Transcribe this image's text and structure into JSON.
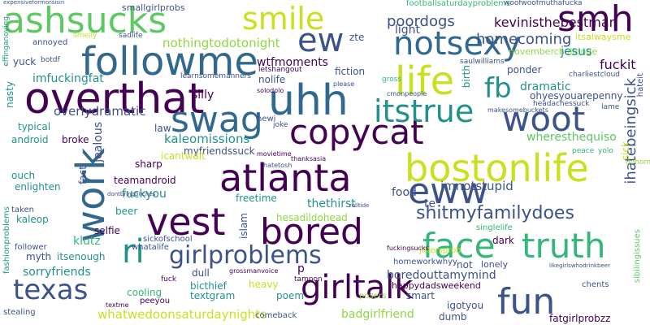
{
  "palette": {
    "dark_purple": "#440154",
    "indigo": "#3b528b",
    "teal_blue": "#31688e",
    "teal": "#21918c",
    "green": "#35b779",
    "light_green": "#5ec962",
    "yellow_green": "#90d743",
    "yellow": "#c8e020"
  },
  "words": [
    {
      "text": "ashsucks",
      "color": "#5ec962",
      "rotate": 0
    },
    {
      "text": "smile",
      "color": "#c8e020",
      "rotate": 0
    },
    {
      "text": "smh",
      "color": "#440154",
      "rotate": 0
    },
    {
      "text": "followme",
      "color": "#31688e",
      "rotate": 0
    },
    {
      "text": "notsexy",
      "color": "#31688e",
      "rotate": 0
    },
    {
      "text": "ew",
      "color": "#3b528b",
      "rotate": 0
    },
    {
      "text": "life",
      "color": "#c8e020",
      "rotate": 0
    },
    {
      "text": "overthat",
      "color": "#440154",
      "rotate": 0
    },
    {
      "text": "uhh",
      "color": "#31688e",
      "rotate": 0
    },
    {
      "text": "swag",
      "color": "#31688e",
      "rotate": 0
    },
    {
      "text": "copycat",
      "color": "#440154",
      "rotate": 0
    },
    {
      "text": "woot",
      "color": "#3b528b",
      "rotate": 0
    },
    {
      "text": "fb",
      "color": "#21918c",
      "rotate": 0
    },
    {
      "text": "itstrue",
      "color": "#21918c",
      "rotate": 0
    },
    {
      "text": "work",
      "color": "#31688e",
      "rotate": -90
    },
    {
      "text": "atlanta",
      "color": "#440154",
      "rotate": 0
    },
    {
      "text": "bostonlife",
      "color": "#c8e020",
      "rotate": 0
    },
    {
      "text": "eww",
      "color": "#3b528b",
      "rotate": 0
    },
    {
      "text": "vest",
      "color": "#440154",
      "rotate": 0
    },
    {
      "text": "bored",
      "color": "#440154",
      "rotate": 0
    },
    {
      "text": "face",
      "color": "#35b779",
      "rotate": 0
    },
    {
      "text": "truth",
      "color": "#35b779",
      "rotate": 0
    },
    {
      "text": "shitmyfamilydoes",
      "color": "#3b528b",
      "rotate": 0
    },
    {
      "text": "ri",
      "color": "#21918c",
      "rotate": 0
    },
    {
      "text": "girlproblems",
      "color": "#3b528b",
      "rotate": 0
    },
    {
      "text": "texas",
      "color": "#3b528b",
      "rotate": 0
    },
    {
      "text": "girltalk",
      "color": "#440154",
      "rotate": 0
    },
    {
      "text": "fun",
      "color": "#3b528b",
      "rotate": 0
    },
    {
      "text": "poordogs",
      "color": "#3b528b",
      "rotate": 0
    },
    {
      "text": "homecoming",
      "color": "#3b528b",
      "rotate": 0
    },
    {
      "text": "kevinisthebestman",
      "color": "#440154",
      "rotate": 0
    },
    {
      "text": "nothingtodotonight",
      "color": "#90d743",
      "rotate": 0
    },
    {
      "text": "smallgirlprobs",
      "color": "#3b528b",
      "rotate": 0
    },
    {
      "text": "footballsaturdayproblems",
      "color": "#35b779",
      "rotate": 0
    },
    {
      "text": "woofwoofmuthafucka",
      "color": "#3b528b",
      "rotate": 0
    },
    {
      "text": "novemberchallenge",
      "color": "#90d743",
      "rotate": 0
    },
    {
      "text": "light",
      "color": "#3b528b",
      "rotate": 0
    },
    {
      "text": "zte",
      "color": "#3b528b",
      "rotate": 0
    },
    {
      "text": "jesus",
      "color": "#21918c",
      "rotate": 0
    },
    {
      "text": "fuckit",
      "color": "#440154",
      "rotate": 0
    },
    {
      "text": "yuck",
      "color": "#3b528b",
      "rotate": 0
    },
    {
      "text": "imfuckingfat",
      "color": "#21918c",
      "rotate": 0
    },
    {
      "text": "wtfmoments",
      "color": "#440154",
      "rotate": 0
    },
    {
      "text": "letshangout",
      "color": "#440154",
      "rotate": 0
    },
    {
      "text": "learnsomemanners",
      "color": "#3b528b",
      "rotate": 0
    },
    {
      "text": "saulwilliams",
      "color": "#3b528b",
      "rotate": 0
    },
    {
      "text": "charliestcloud",
      "color": "#3b528b",
      "rotate": 0
    },
    {
      "text": "ponder",
      "color": "#3b528b",
      "rotate": 0
    },
    {
      "text": "ohyesyouarepenny",
      "color": "#3b528b",
      "rotate": 0
    },
    {
      "text": "dramatic",
      "color": "#21918c",
      "rotate": 0
    },
    {
      "text": "nolife",
      "color": "#3b528b",
      "rotate": 0
    },
    {
      "text": "fiction",
      "color": "#3b528b",
      "rotate": 0
    },
    {
      "text": "silly",
      "color": "#440154",
      "rotate": 0
    },
    {
      "text": "overlydramatic",
      "color": "#3b528b",
      "rotate": 0
    },
    {
      "text": "ihatebeingsick",
      "color": "#3b528b",
      "rotate": -90
    },
    {
      "text": "wheresthequiso",
      "color": "#5ec962",
      "rotate": 0
    },
    {
      "text": "headachessuck",
      "color": "#3b528b",
      "rotate": 0
    },
    {
      "text": "lame",
      "color": "#3b528b",
      "rotate": 0
    },
    {
      "text": "typical",
      "color": "#21918c",
      "rotate": 0
    },
    {
      "text": "broke",
      "color": "#440154",
      "rotate": 0
    },
    {
      "text": "kaleomissions",
      "color": "#21918c",
      "rotate": 0
    },
    {
      "text": "hewi",
      "color": "#3b528b",
      "rotate": 0
    },
    {
      "text": "joke",
      "color": "#3b528b",
      "rotate": 0
    },
    {
      "text": "law",
      "color": "#3b528b",
      "rotate": 0
    },
    {
      "text": "myfriendssuck",
      "color": "#3b528b",
      "rotate": 0
    },
    {
      "text": "android",
      "color": "#21918c",
      "rotate": 0
    },
    {
      "text": "jealous",
      "color": "#3b528b",
      "rotate": -90
    },
    {
      "text": "icantwait",
      "color": "#c8e020",
      "rotate": 0
    },
    {
      "text": "movietime",
      "color": "#440154",
      "rotate": 0
    },
    {
      "text": "hatetosh",
      "color": "#3b528b",
      "rotate": 0
    },
    {
      "text": "thanksasia",
      "color": "#440154",
      "rotate": 0
    },
    {
      "text": "peace",
      "color": "#35b779",
      "rotate": 0
    },
    {
      "text": "yolo",
      "color": "#35b779",
      "rotate": 0
    },
    {
      "text": "gohome",
      "color": "#90d743",
      "rotate": 0
    },
    {
      "text": "ouch",
      "color": "#21918c",
      "rotate": 0
    },
    {
      "text": "sharp",
      "color": "#440154",
      "rotate": 0
    },
    {
      "text": "enlighten",
      "color": "#21918c",
      "rotate": 0
    },
    {
      "text": "fact",
      "color": "#3b528b",
      "rotate": -90
    },
    {
      "text": "teamandroid",
      "color": "#440154",
      "rotate": 0
    },
    {
      "text": "fuckyou",
      "color": "#21918c",
      "rotate": 0
    },
    {
      "text": "imnotstupid",
      "color": "#3b528b",
      "rotate": 0
    },
    {
      "text": "food",
      "color": "#3b528b",
      "rotate": 0
    },
    {
      "text": "te",
      "color": "#3b528b",
      "rotate": 0
    },
    {
      "text": "freetime",
      "color": "#21918c",
      "rotate": 0
    },
    {
      "text": "thethirst",
      "color": "#21918c",
      "rotate": 0
    },
    {
      "text": "hesadildohead",
      "color": "#90d743",
      "rotate": 0
    },
    {
      "text": "taken",
      "color": "#3b528b",
      "rotate": 0
    },
    {
      "text": "kaleop",
      "color": "#21918c",
      "rotate": 0
    },
    {
      "text": "beer",
      "color": "#21918c",
      "rotate": 0
    },
    {
      "text": "klutz",
      "color": "#35b779",
      "rotate": 0
    },
    {
      "text": "selfie",
      "color": "#440154",
      "rotate": 0
    },
    {
      "text": "islam",
      "color": "#3b528b",
      "rotate": -90
    },
    {
      "text": "singlelife",
      "color": "#35b779",
      "rotate": 0
    },
    {
      "text": "dark",
      "color": "#440154",
      "rotate": 0
    },
    {
      "text": "myth",
      "color": "#3b528b",
      "rotate": 0
    },
    {
      "text": "itsenough",
      "color": "#21918c",
      "rotate": 0
    },
    {
      "text": "sickofschool",
      "color": "#3b528b",
      "rotate": 0
    },
    {
      "text": "whatalife",
      "color": "#3b528b",
      "rotate": 0
    },
    {
      "text": "follower",
      "color": "#3b528b",
      "rotate": 0
    },
    {
      "text": "sorryfriends",
      "color": "#21918c",
      "rotate": 0
    },
    {
      "text": "dull",
      "color": "#3b528b",
      "rotate": 0
    },
    {
      "text": "p",
      "color": "#440154",
      "rotate": 0
    },
    {
      "text": "homeworkwhyy",
      "color": "#3b528b",
      "rotate": 0
    },
    {
      "text": "not",
      "color": "#3b528b",
      "rotate": 0
    },
    {
      "text": "boredouttamymind",
      "color": "#3b528b",
      "rotate": 0
    },
    {
      "text": "happydadsweekend",
      "color": "#440154",
      "rotate": 0
    },
    {
      "text": "chents",
      "color": "#3b528b",
      "rotate": 0
    },
    {
      "text": "lonely",
      "color": "#3b528b",
      "rotate": 0
    },
    {
      "text": "bicthief",
      "color": "#21918c",
      "rotate": 0
    },
    {
      "text": "textgram",
      "color": "#21918c",
      "rotate": 0
    },
    {
      "text": "heavy",
      "color": "#c8e020",
      "rotate": 0
    },
    {
      "text": "poem",
      "color": "#21918c",
      "rotate": 0
    },
    {
      "text": "smart",
      "color": "#3b528b",
      "rotate": 0
    },
    {
      "text": "cooling",
      "color": "#35b779",
      "rotate": 0
    },
    {
      "text": "peeyou",
      "color": "#440154",
      "rotate": 0
    },
    {
      "text": "fuck",
      "color": "#440154",
      "rotate": 0
    },
    {
      "text": "tampon",
      "color": "#440154",
      "rotate": 0
    },
    {
      "text": "posers",
      "color": "#90d743",
      "rotate": 0
    },
    {
      "text": "igotyou",
      "color": "#3b528b",
      "rotate": 0
    },
    {
      "text": "whatwedoonsaturdaynights",
      "color": "#c8e020",
      "rotate": 0
    },
    {
      "text": "badgirlfriend",
      "color": "#90d743",
      "rotate": 0
    },
    {
      "text": "dumb",
      "color": "#3b528b",
      "rotate": 0
    },
    {
      "text": "fatgirlprobzz",
      "color": "#440154",
      "rotate": 0
    },
    {
      "text": "stealing",
      "color": "#3b528b",
      "rotate": 0
    },
    {
      "text": "comeback",
      "color": "#3b528b",
      "rotate": 0
    },
    {
      "text": "textme",
      "color": "#440154",
      "rotate": 0
    },
    {
      "text": "fashionproblems",
      "color": "#21918c",
      "rotate": -90
    },
    {
      "text": "effinganoying",
      "color": "#21918c",
      "rotate": -90
    },
    {
      "text": "nasty",
      "color": "#21918c",
      "rotate": -90
    },
    {
      "text": "birth",
      "color": "#21918c",
      "rotate": -90
    },
    {
      "text": "itsalwaysme",
      "color": "#c8e020",
      "rotate": 0
    },
    {
      "text": "annoyed",
      "color": "#3b528b",
      "rotate": 0
    },
    {
      "text": "smelly",
      "color": "#c8e020",
      "rotate": 0
    },
    {
      "text": "sadlife",
      "color": "#3b528b",
      "rotate": 0
    },
    {
      "text": "botdf",
      "color": "#3b528b",
      "rotate": 0
    },
    {
      "text": "solodolo",
      "color": "#440154",
      "rotate": 0
    },
    {
      "text": "cmonpeople",
      "color": "#3b528b",
      "rotate": 0
    },
    {
      "text": "gross",
      "color": "#35b779",
      "rotate": 0
    },
    {
      "text": "please",
      "color": "#3b528b",
      "rotate": 0
    },
    {
      "text": "makesomebuckets",
      "color": "#3b528b",
      "rotate": 0
    },
    {
      "text": "jittersprob",
      "color": "#c8e020",
      "rotate": 0
    },
    {
      "text": "fuckingsucks",
      "color": "#440154",
      "rotate": 0
    },
    {
      "text": "grossmanvoice",
      "color": "#440154",
      "rotate": 0
    },
    {
      "text": "sibilingissues",
      "color": "#5ec962",
      "rotate": -90
    },
    {
      "text": "hateit",
      "color": "#3b528b",
      "rotate": -90
    },
    {
      "text": "sick",
      "color": "#c8e020",
      "rotate": -90
    },
    {
      "text": "expensiveformoraisin",
      "color": "#3b528b",
      "rotate": 0
    },
    {
      "text": "rolltide",
      "color": "#3b528b",
      "rotate": 0
    },
    {
      "text": "likegirlswhodrinkbeer",
      "color": "#3b528b",
      "rotate": 0
    },
    {
      "text": "dontbringbitches",
      "color": "#3b528b",
      "rotate": 0
    }
  ]
}
